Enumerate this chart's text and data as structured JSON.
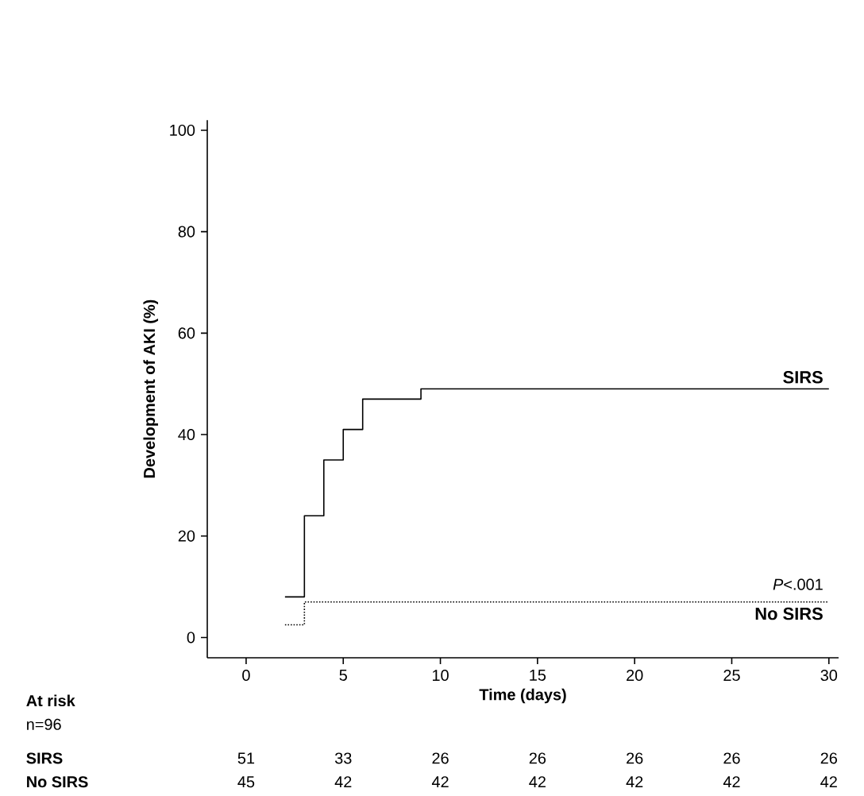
{
  "chart_data": {
    "type": "step",
    "xlabel": "Time (days)",
    "ylabel": "Development of AKI (%)",
    "xlim": [
      -2,
      30.5
    ],
    "ylim": [
      -4,
      102
    ],
    "xticks": [
      0,
      5,
      10,
      15,
      20,
      25,
      30
    ],
    "yticks": [
      0,
      20,
      40,
      60,
      80,
      100
    ],
    "grid": false,
    "legend": false,
    "series": [
      {
        "name": "SIRS",
        "color": "#000000",
        "line_style": "solid",
        "x": [
          2,
          3,
          4,
          5,
          6,
          9,
          30
        ],
        "values": [
          8,
          24,
          35,
          41,
          47,
          49,
          49
        ]
      },
      {
        "name": "No SIRS",
        "color": "#000000",
        "line_style": "dotted",
        "x": [
          2,
          3,
          30
        ],
        "values": [
          2.5,
          7,
          7
        ]
      }
    ],
    "annotations": [
      "*P*<.001",
      "At risk",
      "n=96",
      "SIRS",
      "51",
      "33",
      "26",
      "26",
      "26",
      "26",
      "26",
      "No SIRS",
      "45",
      "42",
      "42",
      "42",
      "42",
      "42",
      "42"
    ]
  }
}
